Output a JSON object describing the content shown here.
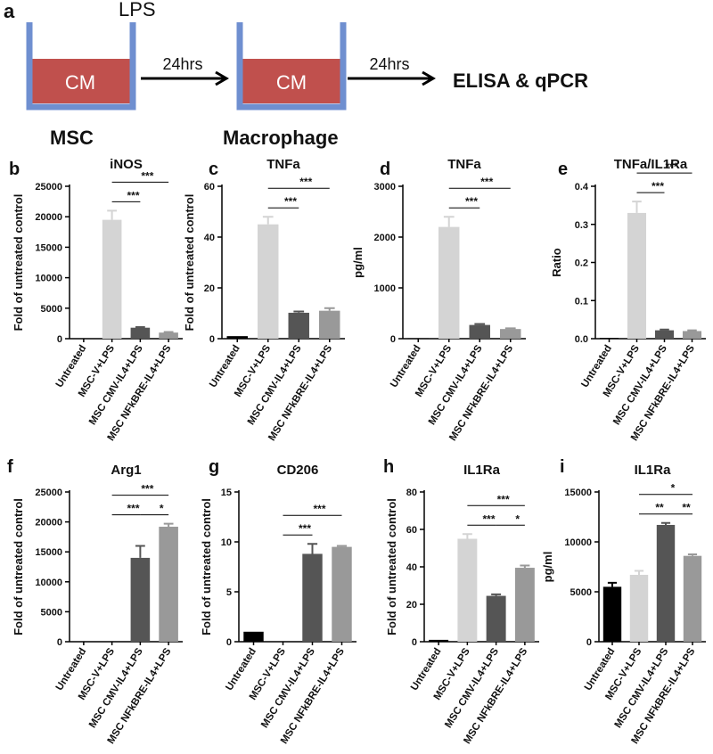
{
  "diagram": {
    "panel": "a",
    "stimulus": "LPS",
    "medium_1": "CM",
    "medium_2": "CM",
    "step_1": "24hrs",
    "step_2": "24hrs",
    "assay": "ELISA & qPCR",
    "cell_1": "MSC",
    "cell_2": "Macrophage"
  },
  "chart_data": [
    {
      "type": "bar",
      "panel": "b",
      "title": "iNOS",
      "y_label": "Fold of untreated control",
      "categories": [
        "Untreated",
        "MSC-V+LPS",
        "MSC CMV-IL4+LPS",
        "MSC NFkBRE-IL4+LPS"
      ],
      "values": [
        10,
        19500,
        1800,
        1000
      ],
      "errors": [
        0,
        1500,
        100,
        100
      ],
      "colors": [
        "#000000",
        "#d4d4d4",
        "#555555",
        "#999999"
      ],
      "ylim": [
        0,
        25000
      ],
      "yticks": [
        0,
        5000,
        10000,
        15000,
        20000,
        25000
      ],
      "annotations": [
        {
          "text": "***",
          "from": 1,
          "to": 2
        },
        {
          "text": "***",
          "from": 1,
          "to": 3
        }
      ]
    },
    {
      "type": "bar",
      "panel": "c",
      "title": "TNFa",
      "y_label": "Fold of untreated control",
      "categories": [
        "Untreated",
        "MSC-V+LPS",
        "MSC CMV-IL4+LPS",
        "MSC NFkBRE-IL4+LPS"
      ],
      "values": [
        1,
        45,
        10.2,
        11
      ],
      "errors": [
        0,
        3,
        0.5,
        1
      ],
      "colors": [
        "#000000",
        "#d4d4d4",
        "#555555",
        "#999999"
      ],
      "ylim": [
        0,
        60
      ],
      "yticks": [
        0,
        20,
        40,
        60
      ],
      "annotations": [
        {
          "text": "***",
          "from": 1,
          "to": 2
        },
        {
          "text": "***",
          "from": 1,
          "to": 3
        }
      ]
    },
    {
      "type": "bar",
      "panel": "d",
      "title": "TNFa",
      "y_label": "pg/ml",
      "categories": [
        "Untreated",
        "MSC-V+LPS",
        "MSC CMV-IL4+LPS",
        "MSC NFkBRE-IL4+LPS"
      ],
      "values": [
        10,
        2200,
        270,
        190
      ],
      "errors": [
        0,
        200,
        20,
        15
      ],
      "colors": [
        "#000000",
        "#d4d4d4",
        "#555555",
        "#999999"
      ],
      "ylim": [
        0,
        3000
      ],
      "yticks": [
        0,
        1000,
        2000,
        3000
      ],
      "annotations": [
        {
          "text": "***",
          "from": 1,
          "to": 2
        },
        {
          "text": "***",
          "from": 1,
          "to": 3
        }
      ]
    },
    {
      "type": "bar",
      "panel": "e",
      "title": "TNFa/IL1Ra",
      "y_label": "Ratio",
      "categories": [
        "Untreated",
        "MSC-V+LPS",
        "MSC CMV-IL4+LPS",
        "MSC NFkBRE-IL4+LPS"
      ],
      "values": [
        0.002,
        0.33,
        0.022,
        0.02
      ],
      "errors": [
        0,
        0.03,
        0.002,
        0.002
      ],
      "colors": [
        "#000000",
        "#d4d4d4",
        "#555555",
        "#999999"
      ],
      "ylim": [
        0,
        0.4
      ],
      "yticks": [
        {
          "value": 0,
          "label": "0.0"
        },
        0.1,
        0.2,
        0.3,
        0.4
      ],
      "annotations": [
        {
          "text": "***",
          "from": 1,
          "to": 2
        },
        {
          "text": "***",
          "from": 1,
          "to": 3
        }
      ]
    },
    {
      "type": "bar",
      "panel": "f",
      "title": "Arg1",
      "y_label": "Fold of untreated control",
      "categories": [
        "Untreated",
        "MSC-V+LPS",
        "MSC CMV-IL4+LPS",
        "MSC NFkBRE-IL4+LPS"
      ],
      "values": [
        0,
        0,
        14000,
        19200
      ],
      "errors": [
        0,
        0,
        2000,
        500
      ],
      "colors": [
        "#000000",
        "#d4d4d4",
        "#555555",
        "#999999"
      ],
      "ylim": [
        0,
        25000
      ],
      "yticks": [
        0,
        5000,
        10000,
        15000,
        20000,
        25000
      ],
      "annotations": [
        {
          "text": "***",
          "from": 1,
          "to": 2
        },
        {
          "text": "***",
          "from": 1,
          "to": 3
        },
        {
          "text": "*",
          "from": 2,
          "to": 3
        }
      ]
    },
    {
      "type": "bar",
      "panel": "g",
      "title": "CD206",
      "y_label": "Fold of untreated control",
      "categories": [
        "Untreated",
        "MSC-V+LPS",
        "MSC CMV-IL4+LPS",
        "MSC NFkBRE-IL4+LPS"
      ],
      "values": [
        1,
        0,
        8.8,
        9.5
      ],
      "errors": [
        0,
        0,
        1,
        0.1
      ],
      "colors": [
        "#000000",
        "#d4d4d4",
        "#555555",
        "#999999"
      ],
      "ylim": [
        0,
        15
      ],
      "yticks": [
        0,
        5,
        10,
        15
      ],
      "annotations": [
        {
          "text": "***",
          "from": 1,
          "to": 2
        },
        {
          "text": "***",
          "from": 1,
          "to": 3
        }
      ]
    },
    {
      "type": "bar",
      "panel": "h",
      "title": "IL1Ra",
      "y_label": "Fold of untreated control",
      "categories": [
        "Untreated",
        "MSC-V+LPS",
        "MSC CMV-IL4+LPS",
        "MSC NFkBRE-IL4+LPS"
      ],
      "values": [
        1,
        55,
        24.5,
        39.5
      ],
      "errors": [
        0,
        2.5,
        0.8,
        1.2
      ],
      "colors": [
        "#000000",
        "#d4d4d4",
        "#555555",
        "#999999"
      ],
      "ylim": [
        0,
        80
      ],
      "yticks": [
        0,
        20,
        40,
        60,
        80
      ],
      "annotations": [
        {
          "text": "***",
          "from": 1,
          "to": 2
        },
        {
          "text": "***",
          "from": 1,
          "to": 3
        },
        {
          "text": "*",
          "from": 2,
          "to": 3
        }
      ]
    },
    {
      "type": "bar",
      "panel": "i",
      "title": "IL1Ra",
      "y_label": "pg/ml",
      "categories": [
        "Untreated",
        "MSC-V+LPS",
        "MSC CMV-IL4+LPS",
        "MSC NFkBRE-IL4+LPS"
      ],
      "values": [
        5500,
        6700,
        11700,
        8600
      ],
      "errors": [
        400,
        400,
        200,
        150
      ],
      "colors": [
        "#000000",
        "#d4d4d4",
        "#555555",
        "#999999"
      ],
      "ylim": [
        0,
        15000
      ],
      "yticks": [
        0,
        5000,
        10000,
        15000
      ],
      "annotations": [
        {
          "text": "**",
          "from": 1,
          "to": 2
        },
        {
          "text": "*",
          "from": 1,
          "to": 3
        },
        {
          "text": "**",
          "from": 2,
          "to": 3
        }
      ]
    }
  ]
}
